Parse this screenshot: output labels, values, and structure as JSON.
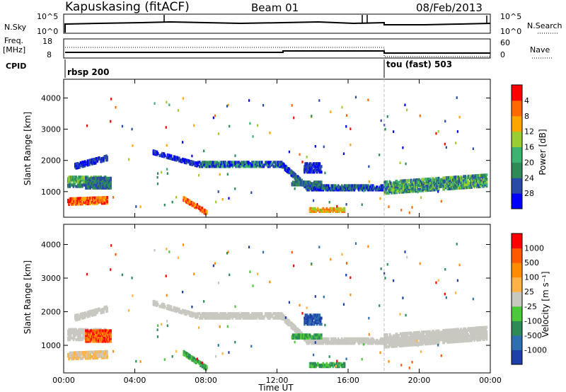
{
  "header": {
    "station": "Kapuskasing (fitACF)",
    "beam": "Beam 01",
    "date": "08/Feb/2013"
  },
  "top_panels": {
    "nsky_label": "N.Sky",
    "nsky_ticks": [
      "10^5",
      "10^0"
    ],
    "nsearch_label": "N.Search",
    "nsearch_ticks": [
      "10^5",
      "10^0"
    ],
    "freq_label": "Freq.",
    "freq_unit": "[MHz]",
    "freq_ticks": [
      "18",
      "8"
    ],
    "nave_label": "Nave",
    "nave_ticks": [
      "60",
      "0"
    ],
    "cpid_label": "CPID",
    "cpid_segments": [
      {
        "name": "rbsp 200",
        "start_hour": 0
      },
      {
        "name": "tou (fast) 503",
        "start_hour": 18
      }
    ]
  },
  "chart_data": [
    {
      "type": "heatmap",
      "quantity": "Power",
      "ylabel": "Slant Range [km]",
      "xlabel": "",
      "ylim": [
        180,
        4600
      ],
      "yticks": [
        "1000",
        "2000",
        "3000",
        "4000"
      ],
      "xticks": [
        "00:00",
        "04:00",
        "08:00",
        "12:00",
        "16:00",
        "20:00",
        "00:00"
      ],
      "colorbar_label": "Power [dB]",
      "colorbar_ticks": [
        "4",
        "8",
        "12",
        "16",
        "20",
        "24",
        "28"
      ],
      "colors": [
        "#0000ff",
        "#2a4aa8",
        "#2e8b57",
        "#3cb371",
        "#9acd32",
        "#ffa500",
        "#ff6a00",
        "#ff0000"
      ]
    },
    {
      "type": "heatmap",
      "quantity": "Velocity",
      "ylabel": "Slant Range [km]",
      "xlabel": "Time UT",
      "ylim": [
        180,
        4600
      ],
      "yticks": [
        "1000",
        "2000",
        "3000",
        "4000"
      ],
      "xticks": [
        "00:00",
        "04:00",
        "08:00",
        "12:00",
        "16:00",
        "20:00",
        "00:00"
      ],
      "colorbar_label": "Velocity [m s⁻¹]",
      "colorbar_ticks": [
        "1000",
        "500",
        "100",
        "25",
        "-25",
        "-100",
        "-500",
        "-1000"
      ],
      "colors": [
        "#1c3fa8",
        "#2e6fb0",
        "#2e8b57",
        "#4cc93a",
        "#c8c8c0",
        "#ffb347",
        "#ff8c00",
        "#ff5a00",
        "#ff0000"
      ]
    }
  ]
}
